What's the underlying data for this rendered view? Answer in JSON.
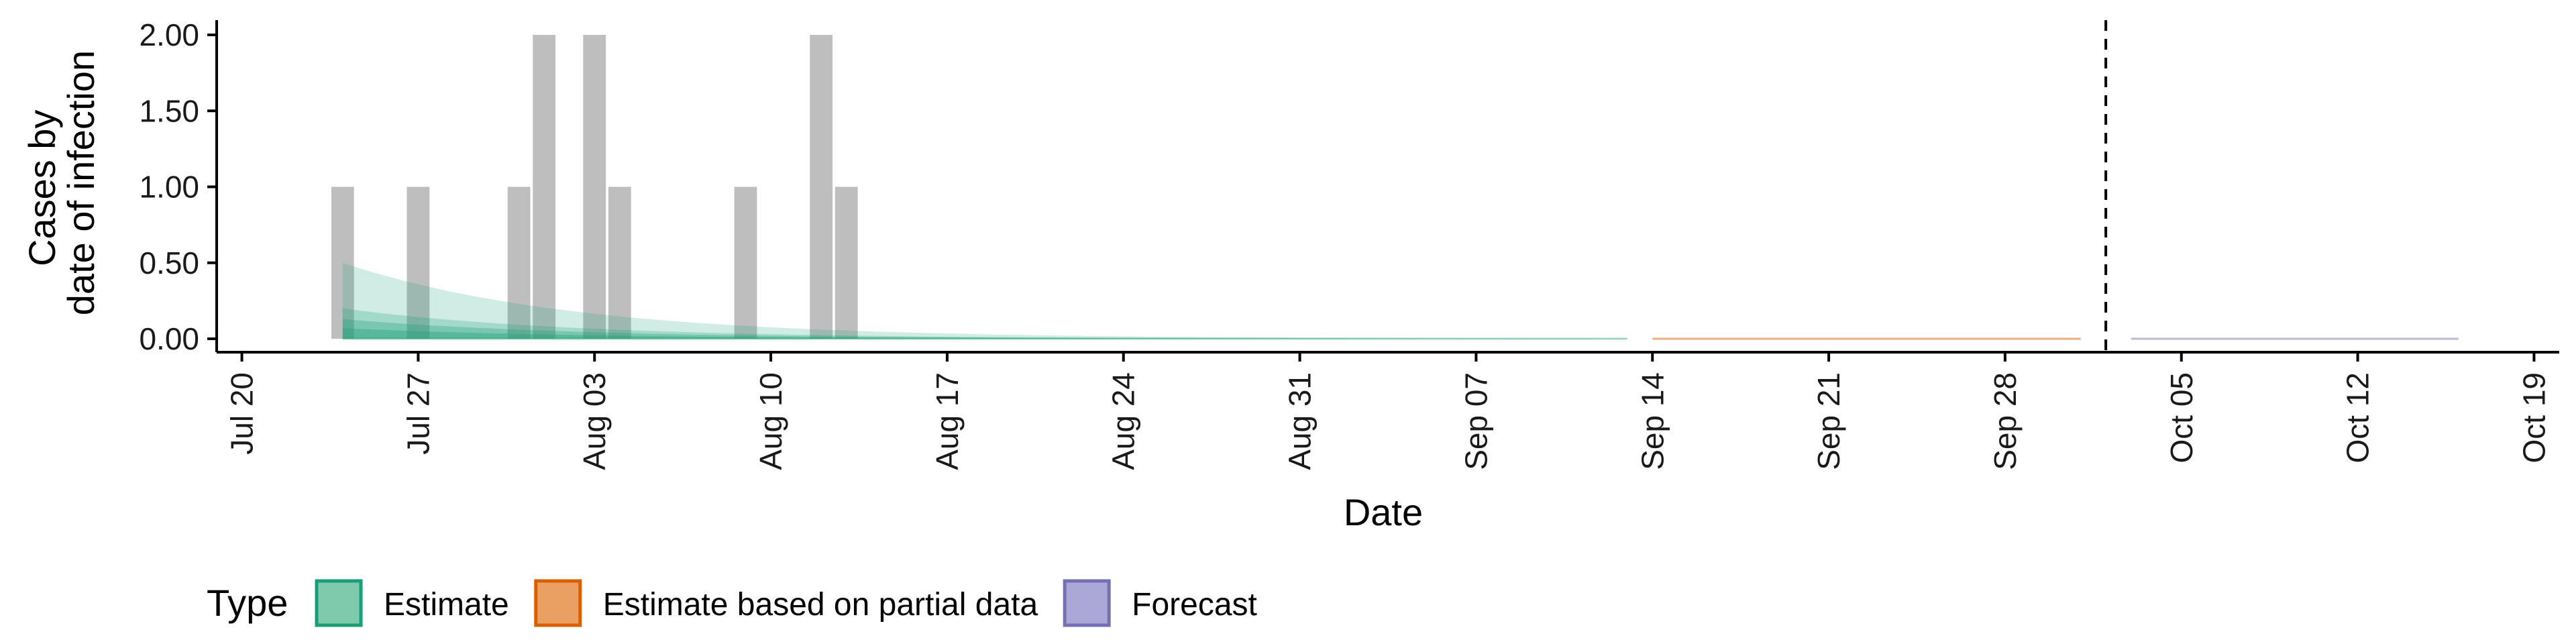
{
  "chart_data": {
    "type": "bar",
    "xlabel": "Date",
    "ylabel_lines": [
      "Cases by",
      "date of infection"
    ],
    "ylim": [
      0,
      2.0
    ],
    "y_ticks": [
      0,
      0.5,
      1.0,
      1.5,
      2.0
    ],
    "y_tick_labels": [
      "0.00",
      "0.50",
      "1.00",
      "1.50",
      "2.00"
    ],
    "x_ticks": [
      "2020-07-20",
      "2020-07-27",
      "2020-08-03",
      "2020-08-10",
      "2020-08-17",
      "2020-08-24",
      "2020-08-31",
      "2020-09-07",
      "2020-09-14",
      "2020-09-21",
      "2020-09-28",
      "2020-10-05",
      "2020-10-12",
      "2020-10-19"
    ],
    "x_tick_labels": [
      "Jul 20",
      "Jul 27",
      "Aug 03",
      "Aug 10",
      "Aug 17",
      "Aug 24",
      "Aug 31",
      "Sep 07",
      "Sep 14",
      "Sep 21",
      "Sep 28",
      "Oct 05",
      "Oct 12",
      "Oct 19"
    ],
    "xlim": [
      "2020-07-19",
      "2020-10-20"
    ],
    "cases": [
      {
        "date": "2020-07-24",
        "value": 1
      },
      {
        "date": "2020-07-27",
        "value": 1
      },
      {
        "date": "2020-07-31",
        "value": 1
      },
      {
        "date": "2020-08-01",
        "value": 2
      },
      {
        "date": "2020-08-03",
        "value": 2
      },
      {
        "date": "2020-08-04",
        "value": 1
      },
      {
        "date": "2020-08-09",
        "value": 1
      },
      {
        "date": "2020-08-12",
        "value": 2
      },
      {
        "date": "2020-08-13",
        "value": 1
      }
    ],
    "estimate": {
      "name": "Estimate",
      "start": "2020-07-24",
      "end": "2020-09-13",
      "color": "#1b9e77",
      "outer_upper_start": 0.5,
      "mid_upper_start": 0.2,
      "inner_upper_start": 0.13,
      "median_start": 0.07
    },
    "partial": {
      "name": "Estimate based on partial data",
      "start": "2020-09-14",
      "end": "2020-10-01",
      "color": "#d95f02",
      "value": 0
    },
    "forecast": {
      "name": "Forecast",
      "start": "2020-10-03",
      "end": "2020-10-16",
      "color": "#7570b3",
      "value": 0
    },
    "vline_date": "2020-10-02",
    "legend": {
      "title": "Type",
      "items": [
        {
          "label": "Estimate",
          "fill": "#7fc9ad",
          "stroke": "#1b9e77"
        },
        {
          "label": "Estimate based on partial data",
          "fill": "#eaa062",
          "stroke": "#d95f02"
        },
        {
          "label": "Forecast",
          "fill": "#aba8d5",
          "stroke": "#7570b3"
        }
      ]
    },
    "bar_color": "#bebebe",
    "grid": false,
    "legend_position": "bottom"
  }
}
